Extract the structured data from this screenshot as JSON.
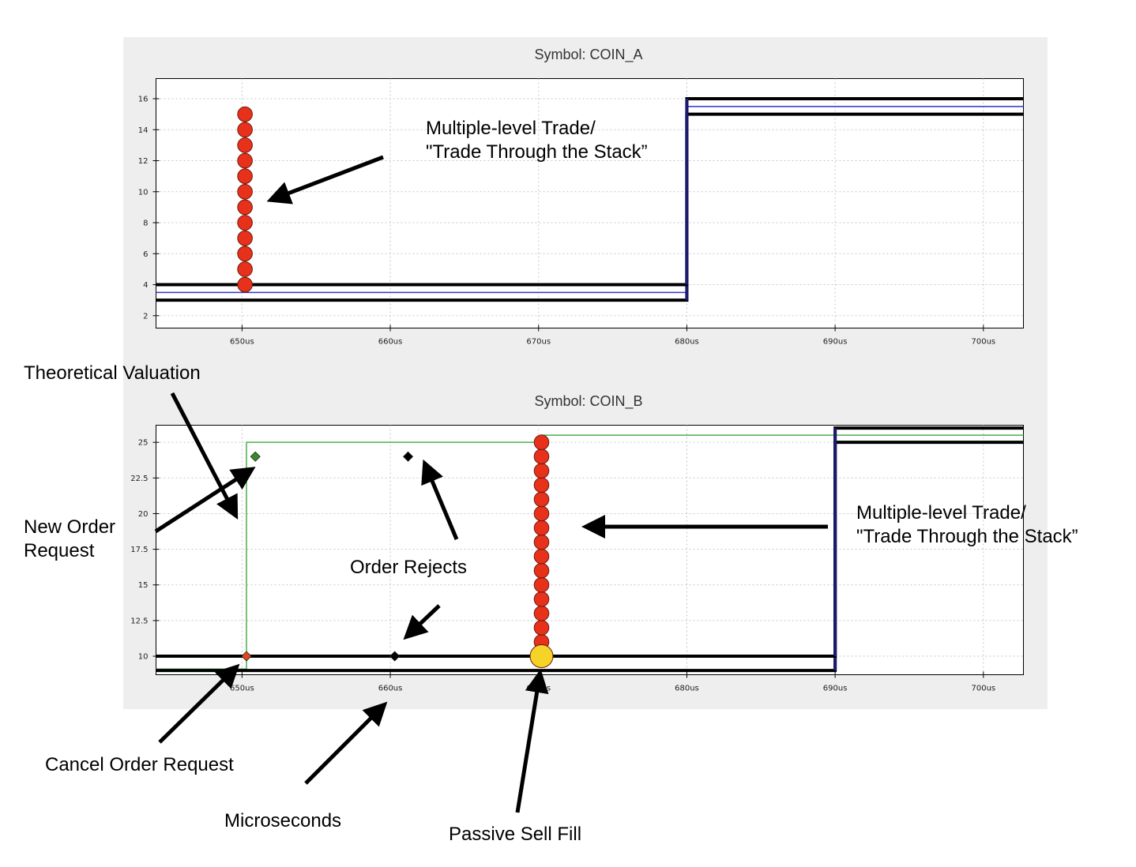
{
  "chart_data": [
    {
      "type": "line",
      "title": "Symbol: COIN_A",
      "x_ticks": [
        "650us",
        "660us",
        "670us",
        "680us",
        "690us",
        "700us"
      ],
      "x_tick_values": [
        650,
        660,
        670,
        680,
        690,
        700
      ],
      "xlim": [
        644.2,
        702.7
      ],
      "y_ticks": [
        "2",
        "4",
        "6",
        "8",
        "10",
        "12",
        "14",
        "16"
      ],
      "y_tick_values": [
        2,
        4,
        6,
        8,
        10,
        12,
        14,
        16
      ],
      "ylim": [
        1.2,
        17.3
      ],
      "grid": true,
      "colors": {
        "book": "#000000",
        "theo": "#3333cc",
        "trade": "#e8311a"
      },
      "series": [
        {
          "role": "ask",
          "style": "step",
          "x": [
            644.2,
            680,
            702.7
          ],
          "y": [
            4,
            16,
            16
          ]
        },
        {
          "role": "bid",
          "style": "step",
          "x": [
            644.2,
            680,
            702.7
          ],
          "y": [
            3,
            15,
            15
          ]
        },
        {
          "role": "theo",
          "style": "step",
          "x": [
            644.2,
            680,
            702.7
          ],
          "y": [
            3.5,
            15.5,
            15.5
          ]
        },
        {
          "role": "trades",
          "style": "markers",
          "marker": "circle",
          "x": [
            650.2,
            650.2,
            650.2,
            650.2,
            650.2,
            650.2,
            650.2,
            650.2,
            650.2,
            650.2,
            650.2,
            650.2
          ],
          "y": [
            4,
            5,
            6,
            7,
            8,
            9,
            10,
            11,
            12,
            13,
            14,
            15
          ]
        }
      ]
    },
    {
      "type": "line",
      "title": "Symbol: COIN_B",
      "x_ticks": [
        "650us",
        "660us",
        "670us",
        "680us",
        "690us",
        "700us"
      ],
      "x_tick_values": [
        650,
        660,
        670,
        680,
        690,
        700
      ],
      "xlim": [
        644.2,
        702.7
      ],
      "y_ticks": [
        "10",
        "12.5",
        "15",
        "17.5",
        "20",
        "22.5",
        "25"
      ],
      "y_tick_values": [
        10,
        12.5,
        15,
        17.5,
        20,
        22.5,
        25
      ],
      "ylim": [
        8.7,
        26.2
      ],
      "grid": true,
      "colors": {
        "book": "#000000",
        "theo": "#4caf4c",
        "trade": "#e8311a",
        "fill": "#f5d327",
        "new_order": "#3a8a2a",
        "cancel": "#e04a1a",
        "reject": "#000000"
      },
      "series": [
        {
          "role": "ask",
          "style": "step",
          "x": [
            644.2,
            690,
            702.7
          ],
          "y": [
            10,
            26,
            26
          ]
        },
        {
          "role": "bid",
          "style": "step",
          "x": [
            644.2,
            690,
            702.7
          ],
          "y": [
            9,
            25,
            25
          ]
        },
        {
          "role": "theo",
          "style": "step",
          "x": [
            644.2,
            650.3,
            670.2,
            702.7
          ],
          "y": [
            9.1,
            25,
            25.5,
            25.5
          ]
        },
        {
          "role": "trades",
          "style": "markers",
          "marker": "circle",
          "x": [
            670.2,
            670.2,
            670.2,
            670.2,
            670.2,
            670.2,
            670.2,
            670.2,
            670.2,
            670.2,
            670.2,
            670.2,
            670.2,
            670.2,
            670.2,
            670.2
          ],
          "y": [
            10,
            11,
            12,
            13,
            14,
            15,
            16,
            17,
            18,
            19,
            20,
            21,
            22,
            23,
            24,
            25
          ]
        },
        {
          "role": "passive_fill",
          "style": "markers",
          "marker": "circle",
          "x": [
            670.2
          ],
          "y": [
            10
          ]
        },
        {
          "role": "new_order",
          "style": "markers",
          "marker": "diamond",
          "x": [
            650.9
          ],
          "y": [
            24
          ]
        },
        {
          "role": "cancel",
          "style": "markers",
          "marker": "diamond",
          "x": [
            650.3
          ],
          "y": [
            10
          ]
        },
        {
          "role": "rejects",
          "style": "markers",
          "marker": "diamond",
          "x": [
            661.2,
            660.3
          ],
          "y": [
            24,
            10
          ]
        }
      ]
    }
  ],
  "annotations": {
    "a_trade_line1": "Multiple-level Trade/",
    "a_trade_line2": "\"Trade Through the Stack”",
    "theo": "Theoretical Valuation",
    "new_order_line1": "New Order",
    "new_order_line2": "Request",
    "order_rejects": "Order Rejects",
    "b_trade_line1": "Multiple-level Trade/",
    "b_trade_line2": "\"Trade Through the Stack”",
    "cancel": "Cancel Order Request",
    "microseconds": "Microseconds",
    "passive_fill": "Passive Sell Fill"
  }
}
